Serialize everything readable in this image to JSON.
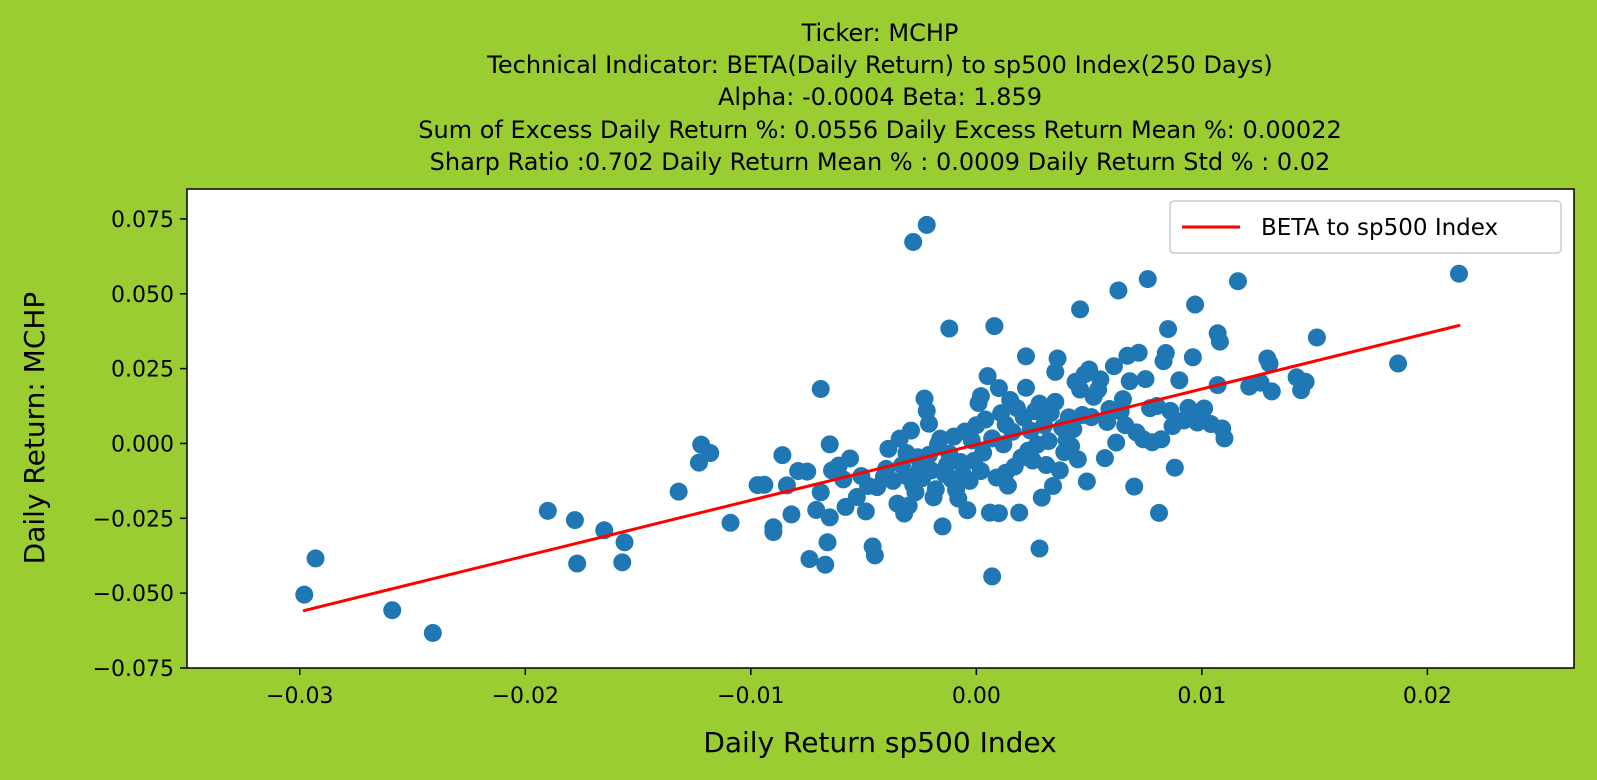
{
  "colors": {
    "figure_background": "#9acd32",
    "plot_background": "#ffffff",
    "scatter": "#1f77b4",
    "beta_line": "#ff0000"
  },
  "chart_data": {
    "type": "scatter",
    "title_lines": [
      "Ticker: MCHP",
      "Technical Indicator: BETA(Daily Return) to sp500 Index(250 Days)",
      "Alpha: -0.0004   Beta: 1.859",
      "Sum of Excess Daily Return %: 0.0556   Daily Excess Return Mean %: 0.00022",
      "Sharp Ratio :0.702     Daily Return Mean % : 0.0009     Daily Return Std % : 0.02"
    ],
    "xlabel": "Daily Return sp500 Index",
    "ylabel": "Daily Return: MCHP",
    "xlim": [
      -0.035,
      0.0265
    ],
    "ylim": [
      -0.075,
      0.085
    ],
    "xticks": [
      -0.03,
      -0.02,
      -0.01,
      0.0,
      0.01,
      0.02
    ],
    "xtick_labels": [
      "−0.03",
      "−0.02",
      "−0.01",
      "0.00",
      "0.01",
      "0.02"
    ],
    "yticks": [
      -0.075,
      -0.05,
      -0.025,
      0.0,
      0.025,
      0.05,
      0.075
    ],
    "ytick_labels": [
      "−0.075",
      "−0.050",
      "−0.025",
      "0.000",
      "0.025",
      "0.050",
      "0.075"
    ],
    "legend": {
      "placement": "top-right",
      "entries": [
        "BETA to sp500 Index"
      ]
    },
    "series": [
      {
        "type": "line",
        "name": "BETA to sp500 Index",
        "color": "#ff0000",
        "x": [
          -0.0298,
          0.0214
        ],
        "y": [
          -0.0558,
          0.0394
        ]
      },
      {
        "type": "scatter",
        "color": "#1f77b4",
        "points": [
          [
            -0.0298,
            -0.0505
          ],
          [
            -0.0293,
            -0.0384
          ],
          [
            -0.0259,
            -0.0557
          ],
          [
            -0.0241,
            -0.0633
          ],
          [
            -0.019,
            -0.0225
          ],
          [
            -0.0178,
            -0.0256
          ],
          [
            -0.0177,
            -0.0401
          ],
          [
            -0.0165,
            -0.029
          ],
          [
            -0.0157,
            -0.0397
          ],
          [
            -0.0156,
            -0.033
          ],
          [
            -0.0132,
            -0.0161
          ],
          [
            -0.0123,
            -0.0064
          ],
          [
            -0.0122,
            -0.0004
          ],
          [
            -0.0118,
            -0.0032
          ],
          [
            -0.0109,
            -0.0265
          ],
          [
            -0.0097,
            -0.0139
          ],
          [
            -0.0094,
            -0.0138
          ],
          [
            -0.009,
            -0.028
          ],
          [
            -0.009,
            -0.0296
          ],
          [
            -0.0086,
            -0.0039
          ],
          [
            -0.0084,
            -0.014
          ],
          [
            -0.0082,
            -0.0237
          ],
          [
            -0.0079,
            -0.0092
          ],
          [
            -0.0075,
            -0.0094
          ],
          [
            -0.0074,
            -0.0386
          ],
          [
            -0.0071,
            -0.0222
          ],
          [
            -0.0069,
            -0.0163
          ],
          [
            -0.0069,
            0.0182
          ],
          [
            -0.0067,
            -0.0405
          ],
          [
            -0.0066,
            -0.033
          ],
          [
            -0.0065,
            -0.0247
          ],
          [
            -0.0065,
            -0.0003
          ],
          [
            -0.0064,
            -0.009
          ],
          [
            -0.0061,
            -0.0074
          ],
          [
            -0.0059,
            -0.012
          ],
          [
            -0.0058,
            -0.0212
          ],
          [
            -0.0056,
            -0.005
          ],
          [
            -0.0053,
            -0.0179
          ],
          [
            -0.0051,
            -0.0109
          ],
          [
            -0.0049,
            -0.0227
          ],
          [
            -0.0048,
            -0.0142
          ],
          [
            -0.0046,
            -0.0344
          ],
          [
            -0.0045,
            -0.0374
          ],
          [
            -0.0044,
            -0.0146
          ],
          [
            -0.0041,
            -0.0112
          ],
          [
            -0.004,
            -0.0085
          ],
          [
            -0.0039,
            -0.0018
          ],
          [
            -0.0037,
            -0.0125
          ],
          [
            -0.0035,
            -0.0201
          ],
          [
            -0.0034,
            0.0016
          ],
          [
            -0.0033,
            -0.0073
          ],
          [
            -0.0032,
            -0.0234
          ],
          [
            -0.0031,
            -0.0109
          ],
          [
            -0.0031,
            -0.0032
          ],
          [
            -0.003,
            -0.0208
          ],
          [
            -0.0029,
            0.0043
          ],
          [
            -0.0028,
            0.0673
          ],
          [
            -0.0028,
            -0.0138
          ],
          [
            -0.0027,
            -0.0163
          ],
          [
            -0.0026,
            -0.0046
          ],
          [
            -0.0025,
            -0.0082
          ],
          [
            -0.0024,
            -0.0116
          ],
          [
            -0.0023,
            0.015
          ],
          [
            -0.0022,
            0.073
          ],
          [
            -0.0022,
            0.0109
          ],
          [
            -0.0021,
            0.0066
          ],
          [
            -0.0021,
            -0.0038
          ],
          [
            -0.002,
            -0.009
          ],
          [
            -0.0019,
            -0.018
          ],
          [
            -0.0018,
            -0.0153
          ],
          [
            -0.0017,
            -0.0003
          ],
          [
            -0.0016,
            0.0016
          ],
          [
            -0.0015,
            -0.0277
          ],
          [
            -0.0014,
            -0.0102
          ],
          [
            -0.0013,
            -0.0071
          ],
          [
            -0.0012,
            0.0384
          ],
          [
            -0.0012,
            -0.0034
          ],
          [
            -0.0011,
            -0.0119
          ],
          [
            -0.001,
            0.0023
          ],
          [
            -0.0009,
            -0.0155
          ],
          [
            -0.0008,
            -0.0184
          ],
          [
            -0.0007,
            -0.0062
          ],
          [
            -0.0006,
            -0.0103
          ],
          [
            -0.0005,
            0.004
          ],
          [
            -0.0004,
            -0.0223
          ],
          [
            -0.0003,
            -0.0125
          ],
          [
            -0.0002,
            0.001
          ],
          [
            -0.0001,
            -0.0058
          ],
          [
            0.0,
            0.0061
          ],
          [
            0.0001,
            0.0135
          ],
          [
            0.0002,
            -0.0092
          ],
          [
            0.0002,
            0.0158
          ],
          [
            0.0003,
            -0.0031
          ],
          [
            0.0004,
            0.008
          ],
          [
            0.0005,
            0.0225
          ],
          [
            0.0006,
            -0.0231
          ],
          [
            0.0007,
            0.0017
          ],
          [
            0.0007,
            -0.0444
          ],
          [
            0.0008,
            0.0392
          ],
          [
            0.0009,
            -0.0114
          ],
          [
            0.001,
            0.0185
          ],
          [
            0.001,
            -0.0233
          ],
          [
            0.0011,
            0.0101
          ],
          [
            0.0012,
            -0.0003
          ],
          [
            0.0013,
            0.0063
          ],
          [
            0.0013,
            -0.0098
          ],
          [
            0.0014,
            -0.0141
          ],
          [
            0.0015,
            0.0145
          ],
          [
            0.0016,
            0.0039
          ],
          [
            0.0017,
            -0.0077
          ],
          [
            0.0018,
            0.0118
          ],
          [
            0.0019,
            -0.0231
          ],
          [
            0.002,
            -0.0047
          ],
          [
            0.0021,
            0.0087
          ],
          [
            0.0022,
            0.0291
          ],
          [
            0.0022,
            0.0186
          ],
          [
            0.0023,
            -0.0024
          ],
          [
            0.0024,
            0.0043
          ],
          [
            0.0025,
            -0.0057
          ],
          [
            0.0026,
            0.0108
          ],
          [
            0.0027,
            -0.0004
          ],
          [
            0.0028,
            -0.0351
          ],
          [
            0.0028,
            0.0133
          ],
          [
            0.0029,
            -0.0181
          ],
          [
            0.003,
            0.0061
          ],
          [
            0.0031,
            -0.0072
          ],
          [
            0.0032,
            0.0008
          ],
          [
            0.0033,
            0.0102
          ],
          [
            0.0034,
            -0.0142
          ],
          [
            0.0035,
            0.0139
          ],
          [
            0.0035,
            0.0239
          ],
          [
            0.0036,
            0.0284
          ],
          [
            0.0037,
            -0.009
          ],
          [
            0.0038,
            0.0053
          ],
          [
            0.0039,
            -0.0029
          ],
          [
            0.004,
            0.0011
          ],
          [
            0.0041,
            0.0087
          ],
          [
            0.0042,
            -0.0009
          ],
          [
            0.0043,
            0.0048
          ],
          [
            0.0044,
            0.0206
          ],
          [
            0.0045,
            -0.0053
          ],
          [
            0.0046,
            0.0448
          ],
          [
            0.0046,
            0.018
          ],
          [
            0.0047,
            0.0095
          ],
          [
            0.0048,
            0.0231
          ],
          [
            0.0049,
            -0.0127
          ],
          [
            0.005,
            0.0247
          ],
          [
            0.0051,
            0.0088
          ],
          [
            0.0052,
            0.0156
          ],
          [
            0.0054,
            0.018
          ],
          [
            0.0055,
            0.0214
          ],
          [
            0.0057,
            -0.0049
          ],
          [
            0.0058,
            0.0072
          ],
          [
            0.0059,
            0.0115
          ],
          [
            0.0061,
            0.0258
          ],
          [
            0.0062,
            0.0003
          ],
          [
            0.0063,
            0.0511
          ],
          [
            0.0064,
            0.0107
          ],
          [
            0.0065,
            0.0148
          ],
          [
            0.0066,
            0.0061
          ],
          [
            0.0067,
            0.0293
          ],
          [
            0.0068,
            0.0208
          ],
          [
            0.007,
            -0.0144
          ],
          [
            0.0071,
            0.0037
          ],
          [
            0.0072,
            0.0303
          ],
          [
            0.0074,
            0.0014
          ],
          [
            0.0075,
            0.0215
          ],
          [
            0.0076,
            0.0549
          ],
          [
            0.0077,
            0.0118
          ],
          [
            0.0078,
            0.0004
          ],
          [
            0.008,
            0.0125
          ],
          [
            0.0081,
            -0.0232
          ],
          [
            0.0082,
            0.0014
          ],
          [
            0.0083,
            0.0275
          ],
          [
            0.0084,
            0.0302
          ],
          [
            0.0085,
            0.0382
          ],
          [
            0.0086,
            0.0109
          ],
          [
            0.0087,
            0.0058
          ],
          [
            0.0088,
            -0.0081
          ],
          [
            0.009,
            0.0211
          ],
          [
            0.0092,
            0.0077
          ],
          [
            0.0094,
            0.0119
          ],
          [
            0.0096,
            0.0288
          ],
          [
            0.0097,
            0.0464
          ],
          [
            0.0098,
            0.007
          ],
          [
            0.01,
            0.0091
          ],
          [
            0.0101,
            0.0117
          ],
          [
            0.0104,
            0.0065
          ],
          [
            0.0107,
            0.0368
          ],
          [
            0.0107,
            0.0195
          ],
          [
            0.0108,
            0.034
          ],
          [
            0.0109,
            0.005
          ],
          [
            0.011,
            0.0017
          ],
          [
            0.0116,
            0.0542
          ],
          [
            0.0121,
            0.019
          ],
          [
            0.0126,
            0.0203
          ],
          [
            0.0129,
            0.0284
          ],
          [
            0.013,
            0.0267
          ],
          [
            0.0131,
            0.0174
          ],
          [
            0.0142,
            0.0221
          ],
          [
            0.0144,
            0.0178
          ],
          [
            0.0146,
            0.0206
          ],
          [
            0.0151,
            0.0354
          ],
          [
            0.0187,
            0.0267
          ],
          [
            0.0214,
            0.0567
          ]
        ]
      }
    ]
  }
}
